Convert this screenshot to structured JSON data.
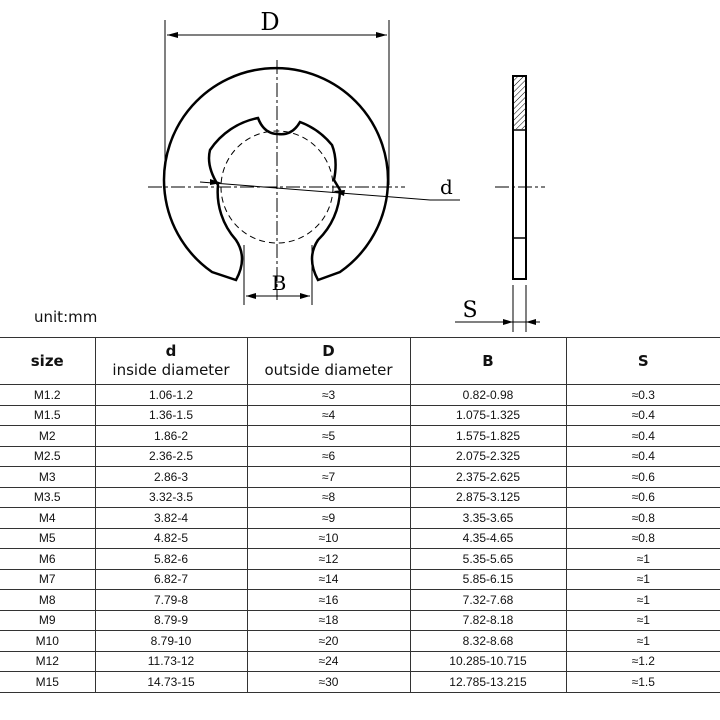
{
  "drawing": {
    "label_D": "D",
    "label_d": "d",
    "label_B": "B",
    "label_S": "S"
  },
  "unit": "unit:mm",
  "table": {
    "headers": [
      {
        "title": "size",
        "sub": ""
      },
      {
        "title": "d",
        "sub": "inside diameter"
      },
      {
        "title": "D",
        "sub": "outside diameter"
      },
      {
        "title": "B",
        "sub": ""
      },
      {
        "title": "S",
        "sub": ""
      }
    ],
    "rows": [
      [
        "M1.2",
        "1.06-1.2",
        "≈3",
        "0.82-0.98",
        "≈0.3"
      ],
      [
        "M1.5",
        "1.36-1.5",
        "≈4",
        "1.075-1.325",
        "≈0.4"
      ],
      [
        "M2",
        "1.86-2",
        "≈5",
        "1.575-1.825",
        "≈0.4"
      ],
      [
        "M2.5",
        "2.36-2.5",
        "≈6",
        "2.075-2.325",
        "≈0.4"
      ],
      [
        "M3",
        "2.86-3",
        "≈7",
        "2.375-2.625",
        "≈0.6"
      ],
      [
        "M3.5",
        "3.32-3.5",
        "≈8",
        "2.875-3.125",
        "≈0.6"
      ],
      [
        "M4",
        "3.82-4",
        "≈9",
        "3.35-3.65",
        "≈0.8"
      ],
      [
        "M5",
        "4.82-5",
        "≈10",
        "4.35-4.65",
        "≈0.8"
      ],
      [
        "M6",
        "5.82-6",
        "≈12",
        "5.35-5.65",
        "≈1"
      ],
      [
        "M7",
        "6.82-7",
        "≈14",
        "5.85-6.15",
        "≈1"
      ],
      [
        "M8",
        "7.79-8",
        "≈16",
        "7.32-7.68",
        "≈1"
      ],
      [
        "M9",
        "8.79-9",
        "≈18",
        "7.82-8.18",
        "≈1"
      ],
      [
        "M10",
        "8.79-10",
        "≈20",
        "8.32-8.68",
        "≈1"
      ],
      [
        "M12",
        "11.73-12",
        "≈24",
        "10.285-10.715",
        "≈1.2"
      ],
      [
        "M15",
        "14.73-15",
        "≈30",
        "12.785-13.215",
        "≈1.5"
      ]
    ]
  }
}
